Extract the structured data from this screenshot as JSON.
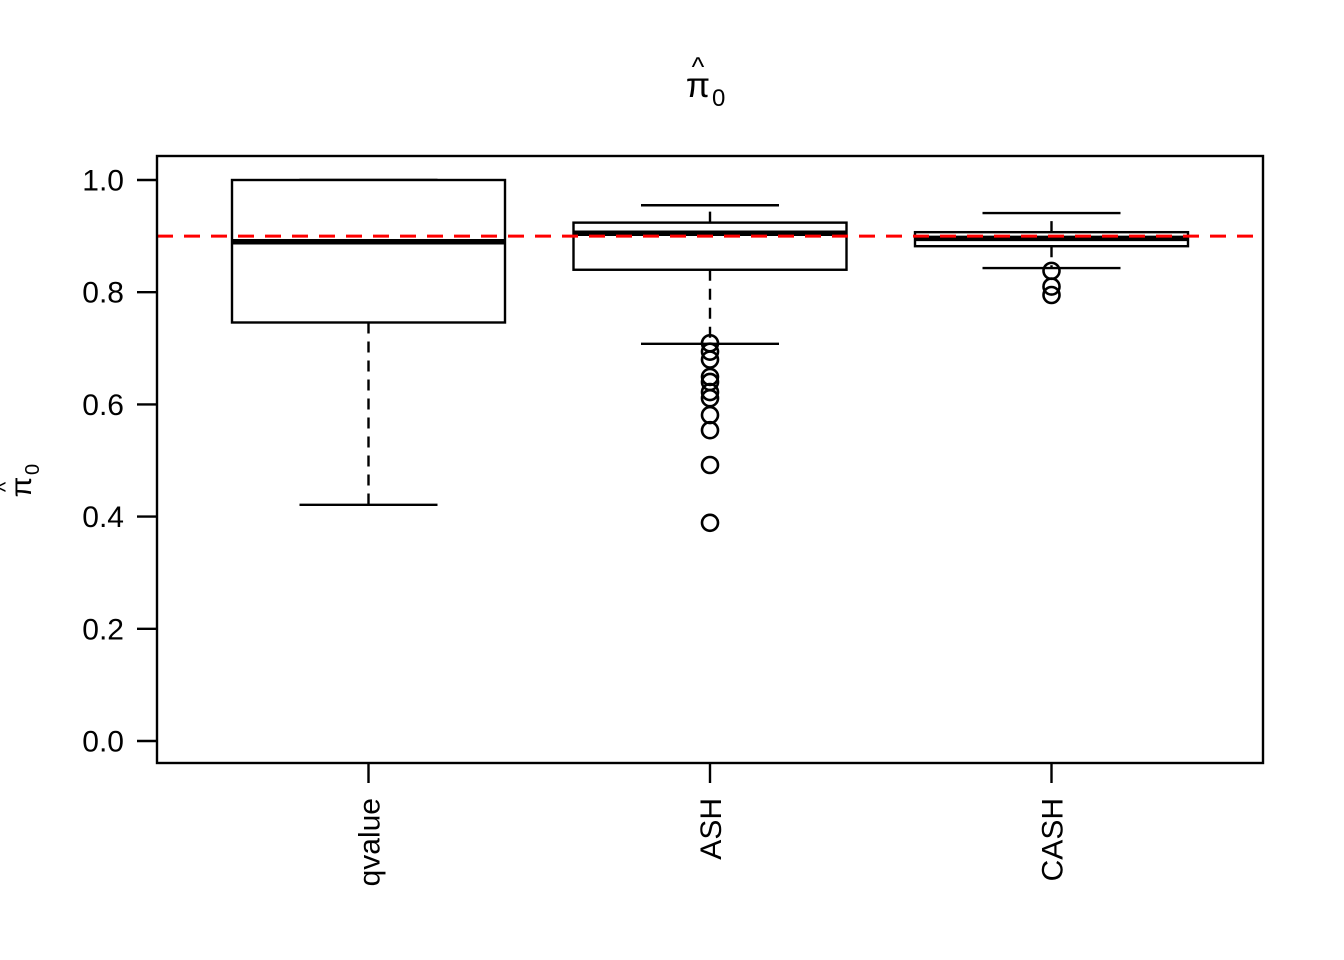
{
  "title": {
    "pi": "π",
    "hat": "^",
    "sub": "0"
  },
  "y_axis_title": {
    "pi": "π",
    "hat": "^",
    "sub": "0"
  },
  "chart_data": {
    "type": "boxplot",
    "title": "pi0-hat",
    "categories": [
      "qvalue",
      "ASH",
      "CASH"
    ],
    "ylabel": "pi0-hat",
    "ylim": [
      0.0,
      1.0
    ],
    "yticks": [
      0.0,
      0.2,
      0.4,
      0.6,
      0.8,
      1.0
    ],
    "yticklabels": [
      "0.0",
      "0.2",
      "0.4",
      "0.6",
      "0.8",
      "1.0"
    ],
    "grid": false,
    "box_fill": "#ffffff",
    "line_color": "#000000",
    "series": [
      {
        "name": "qvalue",
        "whisker_low": 0.421,
        "q1": 0.746,
        "median": 0.89,
        "q3": 1.0,
        "whisker_high": 1.0,
        "outliers": []
      },
      {
        "name": "ASH",
        "whisker_low": 0.708,
        "q1": 0.84,
        "median": 0.905,
        "q3": 0.924,
        "whisker_high": 0.955,
        "outliers": [
          0.709,
          0.694,
          0.68,
          0.649,
          0.64,
          0.622,
          0.611,
          0.581,
          0.554,
          0.492,
          0.389
        ]
      },
      {
        "name": "CASH",
        "whisker_low": 0.843,
        "q1": 0.882,
        "median": 0.896,
        "q3": 0.907,
        "whisker_high": 0.941,
        "outliers": [
          0.838,
          0.81,
          0.795
        ]
      }
    ],
    "reference_line": {
      "value": 0.9,
      "color": "#ff0000",
      "style": "dashed"
    }
  }
}
